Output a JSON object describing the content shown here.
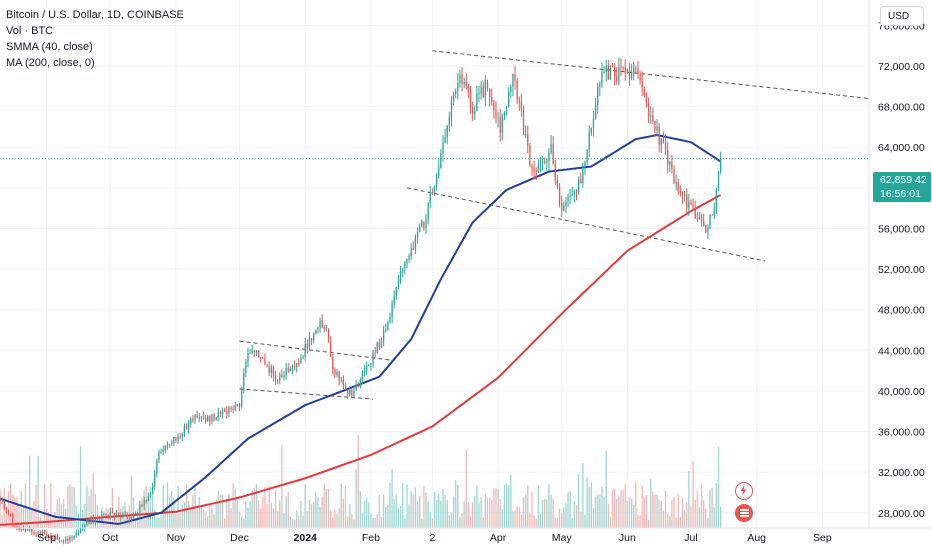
{
  "legend": {
    "title": "Bitcoin / U.S. Dollar, 1D, COINBASE",
    "vol": "Vol · BTC",
    "smma": "SMMA (40, close)",
    "ma": "MA (200, close, 0)"
  },
  "currency": "USD",
  "price_tag": {
    "price": "62,859.42",
    "countdown": "16:56:01"
  },
  "colors": {
    "up": "#26a69a",
    "down": "#ef5350",
    "smma": "#1e3fa0",
    "ma200": "#e8373a",
    "up_vol": "#9fd6d0",
    "down_vol": "#f7b6b5"
  },
  "icons": [
    "lightning-icon",
    "flag-icon"
  ],
  "chart_data": {
    "type": "candlestick",
    "title": "Bitcoin / U.S. Dollar, 1D, COINBASE",
    "y_ticks": [
      "76,000.00",
      "72,000.00",
      "68,000.00",
      "64,000.00",
      "60,000.00",
      "56,000.00",
      "52,000.00",
      "48,000.00",
      "44,000.00",
      "40,000.00",
      "36,000.00",
      "32,000.00",
      "28,000.00"
    ],
    "y_values": [
      76000,
      72000,
      68000,
      64000,
      60000,
      56000,
      52000,
      48000,
      44000,
      40000,
      36000,
      32000,
      28000
    ],
    "ylim": [
      26500,
      78500
    ],
    "x_ticks": [
      {
        "label": "Sep",
        "date": "2023-09-01",
        "bold": false
      },
      {
        "label": "Oct",
        "date": "2023-10-01",
        "bold": false
      },
      {
        "label": "Nov",
        "date": "2023-11-01",
        "bold": false
      },
      {
        "label": "Dec",
        "date": "2023-12-01",
        "bold": false
      },
      {
        "label": "2024",
        "date": "2024-01-01",
        "bold": true
      },
      {
        "label": "Feb",
        "date": "2024-02-01",
        "bold": false
      },
      {
        "label": "2",
        "date": "2024-03-01",
        "bold": false
      },
      {
        "label": "Apr",
        "date": "2024-04-01",
        "bold": false
      },
      {
        "label": "May",
        "date": "2024-05-01",
        "bold": false
      },
      {
        "label": "Jun",
        "date": "2024-06-01",
        "bold": false
      },
      {
        "label": "Jul",
        "date": "2024-07-01",
        "bold": false
      },
      {
        "label": "Aug",
        "date": "2024-08-01",
        "bold": false
      },
      {
        "label": "Sep",
        "date": "2024-09-01",
        "bold": false
      }
    ],
    "xlim": [
      "2023-08-10",
      "2024-09-23"
    ],
    "last_price": 62859.42,
    "close_anchors": [
      [
        "2023-08-10",
        29400
      ],
      [
        "2023-08-17",
        26700
      ],
      [
        "2023-08-25",
        26100
      ],
      [
        "2023-09-01",
        25900
      ],
      [
        "2023-09-11",
        25200
      ],
      [
        "2023-09-20",
        27100
      ],
      [
        "2023-10-01",
        27900
      ],
      [
        "2023-10-10",
        27400
      ],
      [
        "2023-10-20",
        29700
      ],
      [
        "2023-10-24",
        33900
      ],
      [
        "2023-11-01",
        35400
      ],
      [
        "2023-11-10",
        37300
      ],
      [
        "2023-11-20",
        37400
      ],
      [
        "2023-12-01",
        38700
      ],
      [
        "2023-12-05",
        44100
      ],
      [
        "2023-12-10",
        43700
      ],
      [
        "2023-12-18",
        41300
      ],
      [
        "2023-12-28",
        42600
      ],
      [
        "2024-01-08",
        46900
      ],
      [
        "2024-01-11",
        46400
      ],
      [
        "2024-01-14",
        42000
      ],
      [
        "2024-01-23",
        39400
      ],
      [
        "2024-02-01",
        43000
      ],
      [
        "2024-02-10",
        47100
      ],
      [
        "2024-02-15",
        51900
      ],
      [
        "2024-02-27",
        57000
      ],
      [
        "2024-03-05",
        63500
      ],
      [
        "2024-03-14",
        71400
      ],
      [
        "2024-03-20",
        67900
      ],
      [
        "2024-03-26",
        70000
      ],
      [
        "2024-04-02",
        65800
      ],
      [
        "2024-04-08",
        71600
      ],
      [
        "2024-04-17",
        61300
      ],
      [
        "2024-04-26",
        63700
      ],
      [
        "2024-05-01",
        57700
      ],
      [
        "2024-05-10",
        60800
      ],
      [
        "2024-05-20",
        71400
      ],
      [
        "2024-06-05",
        71100
      ],
      [
        "2024-06-14",
        66100
      ],
      [
        "2024-06-24",
        60300
      ],
      [
        "2024-07-05",
        56700
      ],
      [
        "2024-07-08",
        55800
      ],
      [
        "2024-07-12",
        57900
      ],
      [
        "2024-07-15",
        62900
      ]
    ],
    "smma_anchors": [
      [
        "2023-08-10",
        29400
      ],
      [
        "2023-09-05",
        27600
      ],
      [
        "2023-10-05",
        26900
      ],
      [
        "2023-10-25",
        28000
      ],
      [
        "2023-11-15",
        31500
      ],
      [
        "2023-12-05",
        35300
      ],
      [
        "2024-01-01",
        38600
      ],
      [
        "2024-01-20",
        40100
      ],
      [
        "2024-02-05",
        41400
      ],
      [
        "2024-02-20",
        45100
      ],
      [
        "2024-03-05",
        51000
      ],
      [
        "2024-03-20",
        56600
      ],
      [
        "2024-04-05",
        59800
      ],
      [
        "2024-04-25",
        61600
      ],
      [
        "2024-05-15",
        62100
      ],
      [
        "2024-06-05",
        64800
      ],
      [
        "2024-06-15",
        65200
      ],
      [
        "2024-07-01",
        64500
      ],
      [
        "2024-07-15",
        62600
      ]
    ],
    "ma200_anchors": [
      [
        "2023-08-10",
        26800
      ],
      [
        "2023-09-01",
        27100
      ],
      [
        "2023-10-01",
        27600
      ],
      [
        "2023-11-01",
        28100
      ],
      [
        "2023-12-01",
        29500
      ],
      [
        "2024-01-01",
        31400
      ],
      [
        "2024-02-01",
        33700
      ],
      [
        "2024-03-01",
        36500
      ],
      [
        "2024-04-01",
        41300
      ],
      [
        "2024-05-01",
        47600
      ],
      [
        "2024-06-01",
        53800
      ],
      [
        "2024-07-01",
        57700
      ],
      [
        "2024-07-15",
        59300
      ]
    ],
    "trendlines": [
      {
        "from": [
          "2023-12-01",
          44900
        ],
        "to": [
          "2024-02-12",
          43000
        ]
      },
      {
        "from": [
          "2023-12-01",
          40200
        ],
        "to": [
          "2024-02-02",
          39200
        ]
      },
      {
        "from": [
          "2024-03-01",
          73500
        ],
        "to": [
          "2024-09-23",
          68800
        ]
      },
      {
        "from": [
          "2024-02-18",
          60000
        ],
        "to": [
          "2024-08-05",
          52800
        ]
      }
    ]
  }
}
